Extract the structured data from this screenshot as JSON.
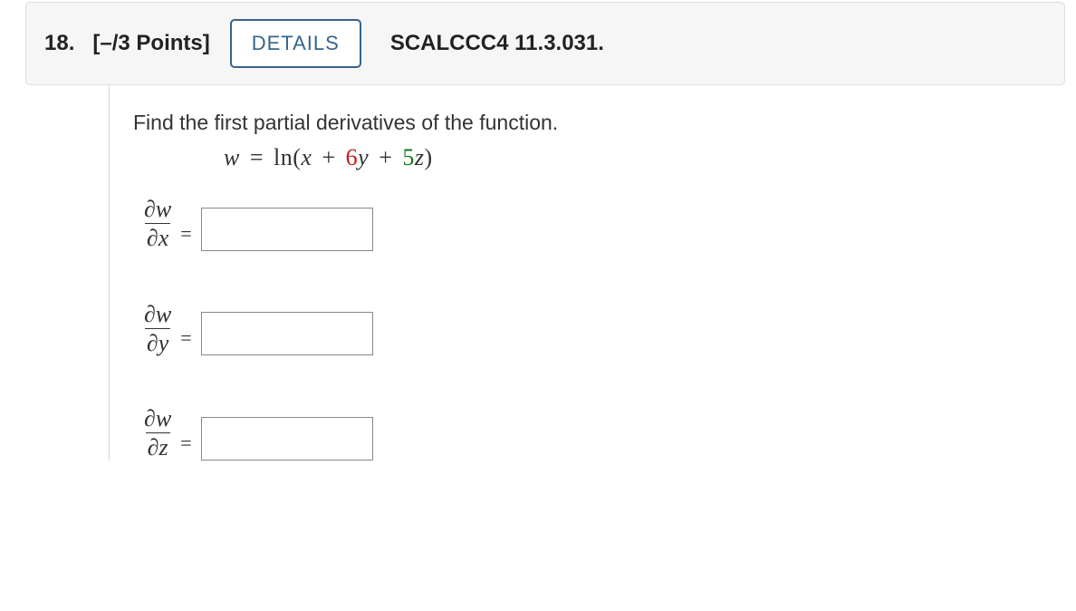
{
  "header": {
    "question_number": "18.",
    "points": "[–/3 Points]",
    "details_label": "DETAILS",
    "source": "SCALCCC4 11.3.031."
  },
  "problem": {
    "prompt": "Find the first partial derivatives of the function.",
    "equation": {
      "lhs_var": "w",
      "eq": "=",
      "func": "ln",
      "open": "(",
      "term1": "x",
      "plus1": "+",
      "coef1": "6",
      "term2": "y",
      "plus2": "+",
      "coef2": "5",
      "term3": "z",
      "close": ")"
    },
    "rows": [
      {
        "num": "∂w",
        "den": "∂x",
        "value": ""
      },
      {
        "num": "∂w",
        "den": "∂y",
        "value": ""
      },
      {
        "num": "∂w",
        "den": "∂z",
        "value": ""
      }
    ],
    "eq_sign": "="
  },
  "colors": {
    "header_bg": "#f6f6f6",
    "header_border": "#dedede",
    "details_border": "#36648b",
    "coef1_color": "#c31d1d",
    "coef2_color": "#147a1a",
    "input_border": "#888888",
    "divider": "#d9d9d9"
  },
  "typography": {
    "base_font": "Arial",
    "math_font": "STIXGeneral / Times",
    "qnum_size_pt": 18,
    "prompt_size_pt": 17,
    "math_size_pt": 20
  }
}
